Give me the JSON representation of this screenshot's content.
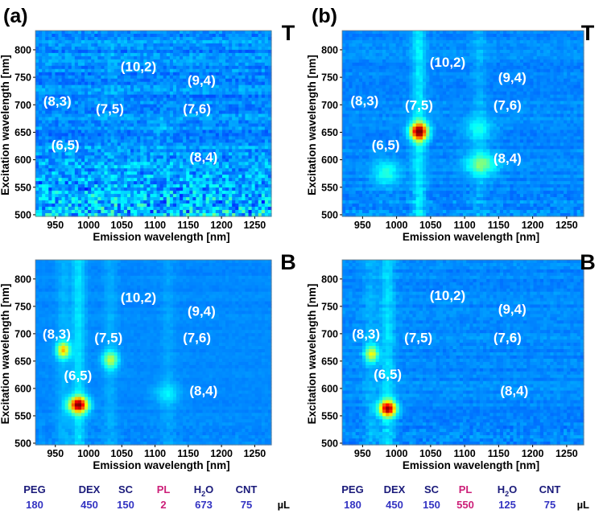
{
  "panel_labels": [
    "(a)",
    "(b)"
  ],
  "chart_data": [
    {
      "type": "heatmap",
      "panel": "(a)",
      "corner_label": "T",
      "xlabel": "Emission wavelength [nm]",
      "ylabel": "Excitation wavelength [nm]",
      "xlim": [
        920,
        1275
      ],
      "ylim": [
        497,
        835
      ],
      "xticks": [
        950,
        1000,
        1050,
        1100,
        1150,
        1200,
        1250
      ],
      "yticks": [
        500,
        550,
        600,
        650,
        700,
        750,
        800
      ],
      "noise": "strong",
      "peaks": [
        {
          "x": 1105,
          "y": 655,
          "amp": 0.06,
          "sx": 15,
          "sy": 14
        }
      ],
      "stripes": [
        {
          "x": 1035,
          "amp": 0.03
        }
      ],
      "annotations": [
        {
          "text": "(10,2)",
          "x": 1075,
          "y": 770
        },
        {
          "text": "(9,4)",
          "x": 1170,
          "y": 745
        },
        {
          "text": "(8,3)",
          "x": 953,
          "y": 707
        },
        {
          "text": "(7,5)",
          "x": 1032,
          "y": 693
        },
        {
          "text": "(7,6)",
          "x": 1163,
          "y": 693
        },
        {
          "text": "(6,5)",
          "x": 965,
          "y": 627
        },
        {
          "text": "(8,4)",
          "x": 1173,
          "y": 605
        }
      ]
    },
    {
      "type": "heatmap",
      "panel": "(b)",
      "corner_label": "T",
      "xlabel": "Emission wavelength [nm]",
      "ylabel": "Excitation wavelength [nm]",
      "xlim": [
        920,
        1275
      ],
      "ylim": [
        497,
        835
      ],
      "xticks": [
        950,
        1000,
        1050,
        1100,
        1150,
        1200,
        1250
      ],
      "yticks": [
        500,
        550,
        600,
        650,
        700,
        750,
        800
      ],
      "noise": "medium",
      "peaks": [
        {
          "x": 1033,
          "y": 651,
          "amp": 1.0,
          "sx": 9,
          "sy": 11
        },
        {
          "x": 1125,
          "y": 592,
          "amp": 0.3,
          "sx": 16,
          "sy": 14
        },
        {
          "x": 985,
          "y": 575,
          "amp": 0.2,
          "sx": 14,
          "sy": 16
        },
        {
          "x": 1120,
          "y": 655,
          "amp": 0.15,
          "sx": 16,
          "sy": 14
        }
      ],
      "stripes": [
        {
          "x": 1033,
          "amp": 0.2
        },
        {
          "x": 1122,
          "amp": 0.08
        }
      ],
      "annotations": [
        {
          "text": "(10,2)",
          "x": 1075,
          "y": 778
        },
        {
          "text": "(9,4)",
          "x": 1170,
          "y": 750
        },
        {
          "text": "(8,3)",
          "x": 953,
          "y": 708
        },
        {
          "text": "(7,5)",
          "x": 1033,
          "y": 700
        },
        {
          "text": "(7,6)",
          "x": 1163,
          "y": 700
        },
        {
          "text": "(6,5)",
          "x": 984,
          "y": 627
        },
        {
          "text": "(8,4)",
          "x": 1163,
          "y": 603
        }
      ]
    },
    {
      "type": "heatmap",
      "panel": "(a)",
      "corner_label": "B",
      "xlabel": "Emission wavelength [nm]",
      "ylabel": "Excitation wavelength [nm]",
      "xlim": [
        920,
        1275
      ],
      "ylim": [
        497,
        835
      ],
      "xticks": [
        950,
        1000,
        1050,
        1100,
        1150,
        1200,
        1250
      ],
      "yticks": [
        500,
        550,
        600,
        650,
        700,
        750,
        800
      ],
      "noise": "light",
      "peaks": [
        {
          "x": 985,
          "y": 570,
          "amp": 0.95,
          "sx": 10,
          "sy": 10
        },
        {
          "x": 962,
          "y": 670,
          "amp": 0.55,
          "sx": 7,
          "sy": 10
        },
        {
          "x": 1033,
          "y": 652,
          "amp": 0.38,
          "sx": 8,
          "sy": 11
        },
        {
          "x": 1118,
          "y": 590,
          "amp": 0.12,
          "sx": 14,
          "sy": 14
        }
      ],
      "stripes": [
        {
          "x": 985,
          "amp": 0.18
        },
        {
          "x": 962,
          "amp": 0.08
        },
        {
          "x": 1033,
          "amp": 0.07
        },
        {
          "x": 1120,
          "amp": 0.05
        }
      ],
      "annotations": [
        {
          "text": "(10,2)",
          "x": 1075,
          "y": 767
        },
        {
          "text": "(9,4)",
          "x": 1170,
          "y": 742
        },
        {
          "text": "(8,3)",
          "x": 952,
          "y": 700
        },
        {
          "text": "(7,5)",
          "x": 1030,
          "y": 693
        },
        {
          "text": "(7,6)",
          "x": 1163,
          "y": 693
        },
        {
          "text": "(6,5)",
          "x": 984,
          "y": 624
        },
        {
          "text": "(8,4)",
          "x": 1173,
          "y": 596
        }
      ]
    },
    {
      "type": "heatmap",
      "panel": "(b)",
      "corner_label": "B",
      "xlabel": "Emission wavelength [nm]",
      "ylabel": "Excitation wavelength [nm]",
      "xlim": [
        920,
        1275
      ],
      "ylim": [
        497,
        835
      ],
      "xticks": [
        950,
        1000,
        1050,
        1100,
        1150,
        1200,
        1250
      ],
      "yticks": [
        500,
        550,
        600,
        650,
        700,
        750,
        800
      ],
      "noise": "medium",
      "peaks": [
        {
          "x": 987,
          "y": 563,
          "amp": 0.92,
          "sx": 9,
          "sy": 10
        },
        {
          "x": 963,
          "y": 663,
          "amp": 0.45,
          "sx": 7,
          "sy": 10
        }
      ],
      "stripes": [
        {
          "x": 987,
          "amp": 0.17
        },
        {
          "x": 962,
          "amp": 0.08
        }
      ],
      "annotations": [
        {
          "text": "(10,2)",
          "x": 1075,
          "y": 770
        },
        {
          "text": "(9,4)",
          "x": 1170,
          "y": 745
        },
        {
          "text": "(8,3)",
          "x": 955,
          "y": 700
        },
        {
          "text": "(7,5)",
          "x": 1032,
          "y": 693
        },
        {
          "text": "(7,6)",
          "x": 1163,
          "y": 693
        },
        {
          "text": "(6,5)",
          "x": 987,
          "y": 626
        },
        {
          "text": "(8,4)",
          "x": 1173,
          "y": 596
        }
      ]
    }
  ],
  "legend": {
    "unit": "µL",
    "columns": [
      "PEG",
      "DEX",
      "SC",
      "PL",
      "H2O",
      "CNT"
    ],
    "colors": {
      "name": "#1a1a7a",
      "value": "#3333c2",
      "highlight": "#cc1e78"
    },
    "a": [
      "180",
      "450",
      "150",
      "2",
      "673",
      "75"
    ],
    "b": [
      "180",
      "450",
      "150",
      "550",
      "125",
      "75"
    ]
  }
}
